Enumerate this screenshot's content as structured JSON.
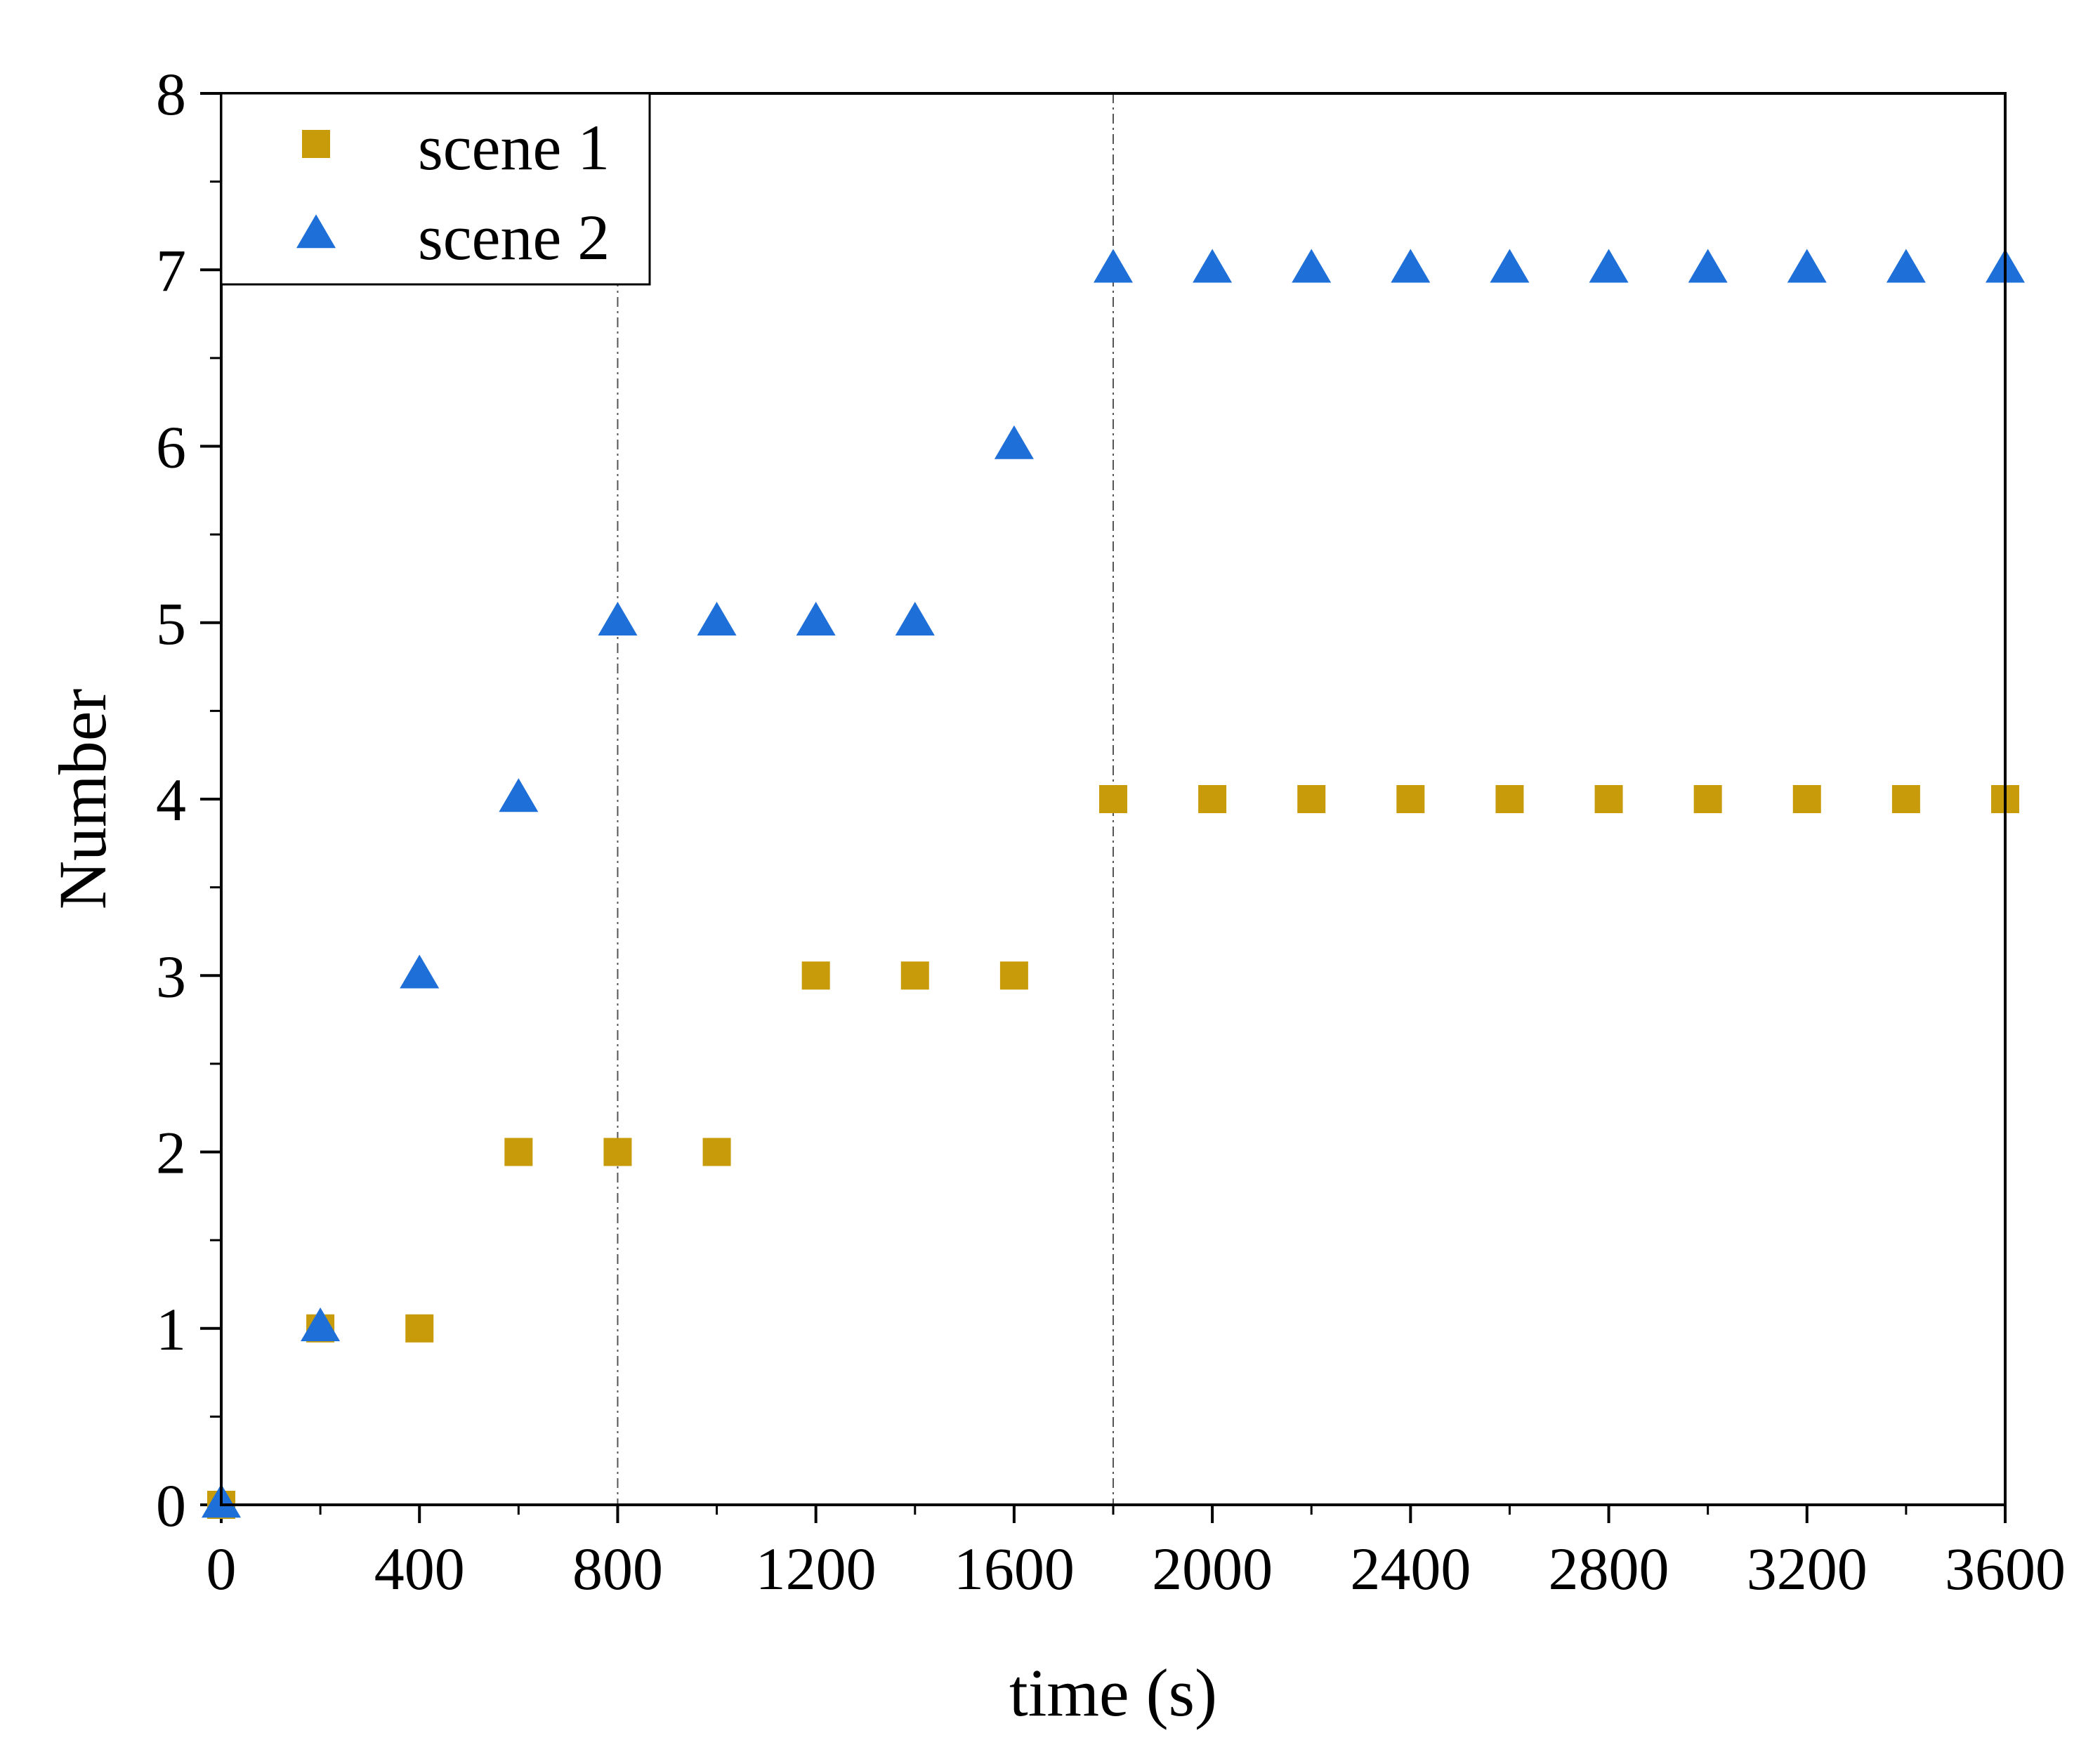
{
  "chart_data": {
    "type": "scatter",
    "title": "",
    "xlabel": "time (s)",
    "ylabel": "Number",
    "xlim": [
      0,
      3600
    ],
    "ylim": [
      0,
      8
    ],
    "x_major_ticks": [
      0,
      400,
      800,
      1200,
      1600,
      2000,
      2400,
      2800,
      3200,
      3600
    ],
    "x_tick_labels": [
      "0",
      "400",
      "800",
      "1200",
      "1600",
      "2000",
      "2400",
      "2800",
      "3200",
      "3600"
    ],
    "x_minor_step": 200,
    "y_major_ticks": [
      0,
      1,
      2,
      3,
      4,
      5,
      6,
      7,
      8
    ],
    "y_tick_labels": [
      "0",
      "1",
      "2",
      "3",
      "4",
      "5",
      "6",
      "7",
      "8"
    ],
    "y_minor_step": 0.5,
    "grid": false,
    "reference_lines_x": [
      800,
      1800
    ],
    "legend": {
      "position": "top-left"
    },
    "x": [
      0,
      200,
      400,
      600,
      800,
      1000,
      1200,
      1400,
      1600,
      1800,
      2000,
      2200,
      2400,
      2600,
      2800,
      3000,
      3200,
      3400,
      3600
    ],
    "series": [
      {
        "name": "scene 1",
        "marker": "square",
        "color": "#C89B0A",
        "values": [
          0,
          1,
          1,
          2,
          2,
          2,
          3,
          3,
          3,
          4,
          4,
          4,
          4,
          4,
          4,
          4,
          4,
          4,
          4
        ]
      },
      {
        "name": "scene 2",
        "marker": "triangle",
        "color": "#1E6FD8",
        "values": [
          0,
          1,
          3,
          4,
          5,
          5,
          5,
          5,
          6,
          7,
          7,
          7,
          7,
          7,
          7,
          7,
          7,
          7,
          7
        ]
      }
    ]
  }
}
